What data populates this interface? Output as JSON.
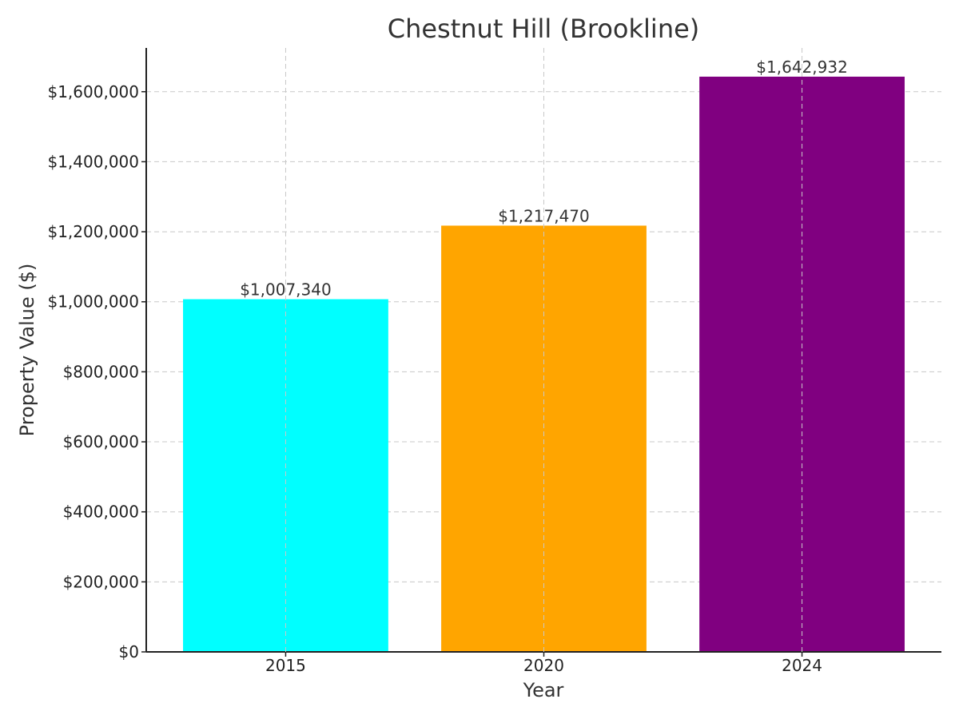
{
  "chart_data": {
    "type": "bar",
    "title": "Chestnut Hill (Brookline)",
    "xlabel": "Year",
    "ylabel": "Property Value ($)",
    "categories": [
      "2015",
      "2020",
      "2024"
    ],
    "values": [
      1007340,
      1217470,
      1642932
    ],
    "value_labels": [
      "$1,007,340",
      "$1,217,470",
      "$1,642,932"
    ],
    "colors": [
      "#00ffff",
      "#ffa500",
      "#800080"
    ],
    "ylim": [
      0,
      1725000
    ],
    "yticks": [
      0,
      200000,
      400000,
      600000,
      800000,
      1000000,
      1200000,
      1400000,
      1600000
    ],
    "ytick_labels": [
      "$0",
      "$200,000",
      "$400,000",
      "$600,000",
      "$800,000",
      "$1,000,000",
      "$1,200,000",
      "$1,400,000",
      "$1,600,000"
    ],
    "grid": true
  }
}
